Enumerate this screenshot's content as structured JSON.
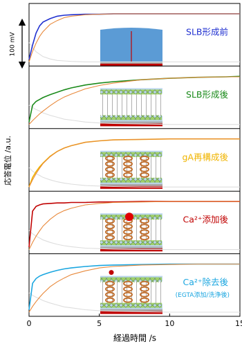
{
  "xlim": [
    0,
    15
  ],
  "xticks": [
    0,
    5,
    10,
    15
  ],
  "xlabel": "経過時間 /s",
  "ylabel": "応答電位 /a.u.",
  "scale_bar": "100 mV",
  "chart_data": [
    {
      "type": "line",
      "label": "SLB形成前",
      "ylim": [
        0,
        1.1
      ],
      "x": [
        0,
        0.25,
        0.5,
        0.75,
        1,
        1.5,
        2,
        2.5,
        3,
        4,
        5,
        6,
        8,
        10,
        12,
        14,
        15
      ],
      "series": [
        {
          "color": "#dddddd",
          "values": [
            0.4,
            0.3,
            0.21,
            0.16,
            0.11,
            0.06,
            0.03,
            0.02,
            0.01,
            0,
            0,
            0,
            0,
            0,
            0,
            0,
            0
          ]
        },
        {
          "color": "#2030d0",
          "values": [
            0.05,
            0.35,
            0.6,
            0.75,
            0.83,
            0.9,
            0.95,
            0.97,
            0.98,
            0.99,
            0.99,
            1,
            1,
            1,
            1,
            1,
            1
          ]
        },
        {
          "color": "#e8883a",
          "values": [
            0,
            0.22,
            0.39,
            0.53,
            0.63,
            0.78,
            0.86,
            0.92,
            0.95,
            0.98,
            0.99,
            1,
            1,
            1,
            1,
            1,
            1
          ]
        }
      ]
    },
    {
      "type": "line",
      "label": "SLB形成後",
      "ylim": [
        0,
        1.1
      ],
      "x": [
        0,
        0.25,
        0.5,
        0.75,
        1,
        1.5,
        2,
        2.5,
        3,
        4,
        5,
        6,
        8,
        10,
        12,
        14,
        15
      ],
      "series": [
        {
          "color": "#dddddd",
          "values": [
            0.4,
            0.35,
            0.31,
            0.28,
            0.24,
            0.19,
            0.15,
            0.11,
            0.09,
            0.05,
            0.03,
            0.02,
            0.01,
            0,
            0,
            0,
            0
          ]
        },
        {
          "color": "#1a8a1a",
          "values": [
            0.05,
            0.4,
            0.48,
            0.52,
            0.56,
            0.62,
            0.67,
            0.72,
            0.76,
            0.82,
            0.86,
            0.89,
            0.93,
            0.96,
            0.98,
            0.99,
            1
          ]
        },
        {
          "color": "#e8883a",
          "values": [
            0,
            0.08,
            0.15,
            0.22,
            0.28,
            0.39,
            0.49,
            0.57,
            0.63,
            0.74,
            0.81,
            0.86,
            0.93,
            0.96,
            0.98,
            0.99,
            0.99
          ]
        }
      ]
    },
    {
      "type": "line",
      "label": "gA再構成後",
      "ylim": [
        0,
        1.1
      ],
      "x": [
        0,
        0.25,
        0.5,
        0.75,
        1,
        1.5,
        2,
        2.5,
        3,
        4,
        5,
        6,
        8,
        10,
        12,
        14,
        15
      ],
      "series": [
        {
          "color": "#dddddd",
          "values": [
            0.4,
            0.33,
            0.28,
            0.24,
            0.2,
            0.15,
            0.11,
            0.08,
            0.06,
            0.03,
            0.02,
            0.01,
            0,
            0,
            0,
            0,
            0
          ]
        },
        {
          "color": "#f0b400",
          "values": [
            0,
            0.2,
            0.32,
            0.42,
            0.5,
            0.64,
            0.74,
            0.81,
            0.86,
            0.93,
            0.96,
            0.98,
            0.99,
            1,
            1,
            1,
            1
          ]
        },
        {
          "color": "#e8883a",
          "values": [
            0,
            0.15,
            0.28,
            0.39,
            0.49,
            0.63,
            0.74,
            0.81,
            0.86,
            0.93,
            0.96,
            0.98,
            0.99,
            1,
            1,
            1,
            1
          ]
        }
      ]
    },
    {
      "type": "line",
      "label": "Ca²⁺添加後",
      "ylim": [
        0,
        1.1
      ],
      "x": [
        0,
        0.25,
        0.5,
        0.75,
        1,
        1.5,
        2,
        2.5,
        3,
        4,
        5,
        6,
        8,
        10,
        12,
        14,
        15
      ],
      "series": [
        {
          "color": "#dddddd",
          "values": [
            0.4,
            0.33,
            0.28,
            0.24,
            0.2,
            0.15,
            0.11,
            0.08,
            0.06,
            0.03,
            0.02,
            0.01,
            0,
            0,
            0,
            0,
            0
          ]
        },
        {
          "color": "#c00000",
          "values": [
            0.05,
            0.8,
            0.9,
            0.93,
            0.95,
            0.96,
            0.97,
            0.97,
            0.98,
            0.98,
            0.99,
            0.99,
            1,
            1,
            1,
            1,
            1
          ]
        },
        {
          "color": "#e8883a",
          "values": [
            0,
            0.15,
            0.28,
            0.39,
            0.49,
            0.63,
            0.74,
            0.81,
            0.86,
            0.93,
            0.96,
            0.98,
            0.99,
            1,
            1,
            1,
            1
          ]
        }
      ]
    },
    {
      "type": "line",
      "label": "Ca²⁺除去後",
      "note": "(EGTA添加/洗浄後)",
      "ylim": [
        0,
        1.1
      ],
      "x": [
        0,
        0.25,
        0.5,
        0.75,
        1,
        1.5,
        2,
        2.5,
        3,
        4,
        5,
        6,
        8,
        10,
        12,
        14,
        15
      ],
      "series": [
        {
          "color": "#dddddd",
          "values": [
            0.4,
            0.35,
            0.31,
            0.28,
            0.24,
            0.19,
            0.15,
            0.11,
            0.09,
            0.05,
            0.03,
            0.02,
            0.01,
            0,
            0,
            0,
            0
          ]
        },
        {
          "color": "#1aa6e0",
          "values": [
            0.05,
            0.6,
            0.7,
            0.75,
            0.78,
            0.83,
            0.87,
            0.9,
            0.92,
            0.95,
            0.97,
            0.98,
            0.99,
            1,
            1,
            1,
            1
          ]
        },
        {
          "color": "#e8883a",
          "values": [
            0,
            0.12,
            0.22,
            0.31,
            0.39,
            0.53,
            0.63,
            0.71,
            0.78,
            0.86,
            0.92,
            0.95,
            0.98,
            0.99,
            1,
            1,
            1
          ]
        }
      ]
    }
  ]
}
